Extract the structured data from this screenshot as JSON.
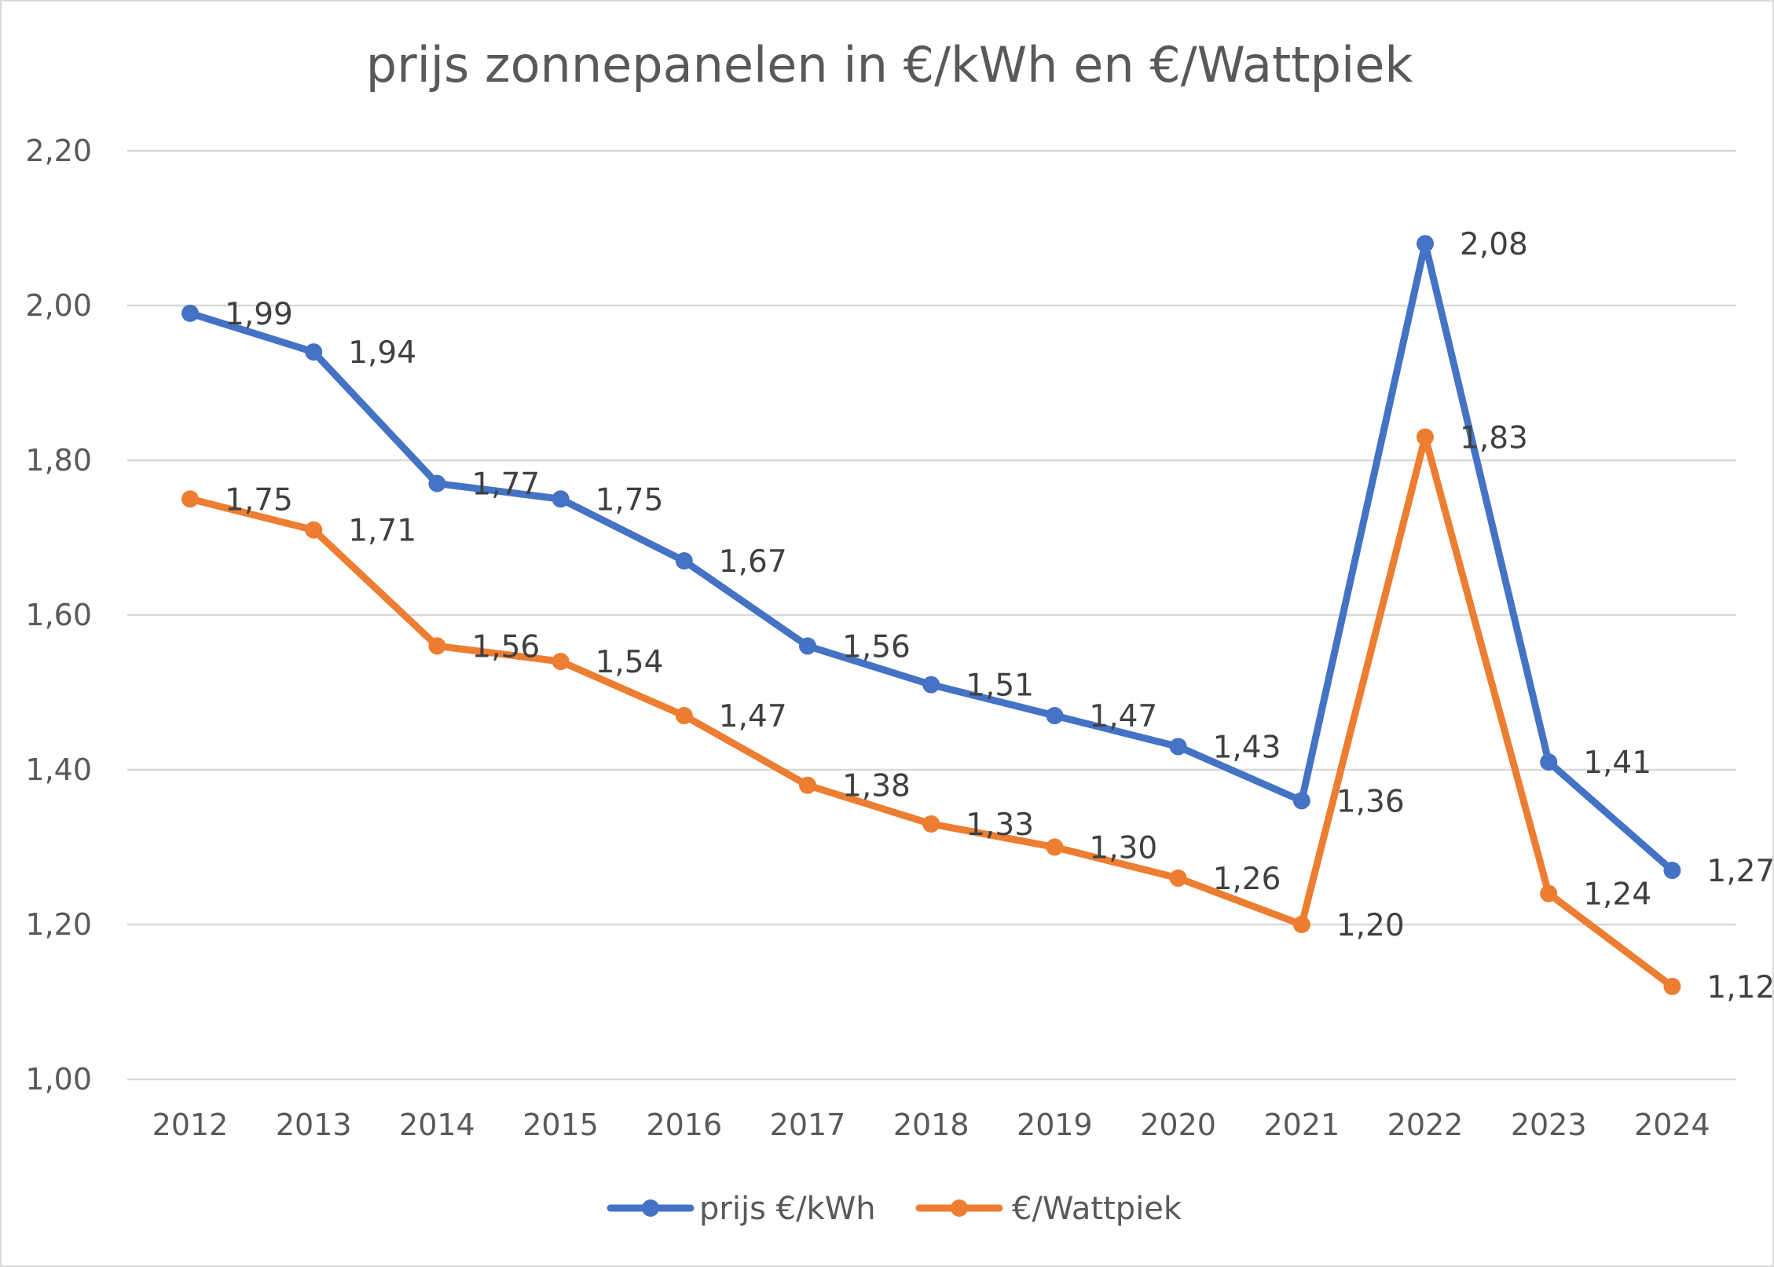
{
  "chart_data": {
    "type": "line",
    "title": "prijs zonnepanelen in €/kWh en €/Wattpiek",
    "xlabel": "",
    "ylabel": "",
    "categories": [
      "2012",
      "2013",
      "2014",
      "2015",
      "2016",
      "2017",
      "2018",
      "2019",
      "2020",
      "2021",
      "2022",
      "2023",
      "2024"
    ],
    "ylim": [
      1.0,
      2.2
    ],
    "yticks": [
      1.0,
      1.2,
      1.4,
      1.6,
      1.8,
      2.0,
      2.2
    ],
    "ytick_labels": [
      "1,00",
      "1,20",
      "1,40",
      "1,60",
      "1,80",
      "2,00",
      "2,20"
    ],
    "grid": true,
    "legend_position": "bottom",
    "series": [
      {
        "name": "prijs €/kWh",
        "color": "#4472C4",
        "values": [
          1.99,
          1.94,
          1.77,
          1.75,
          1.67,
          1.56,
          1.51,
          1.47,
          1.43,
          1.36,
          2.08,
          1.41,
          1.27
        ],
        "labels": [
          "1,99",
          "1,94",
          "1,77",
          "1,75",
          "1,67",
          "1,56",
          "1,51",
          "1,47",
          "1,43",
          "1,36",
          "2,08",
          "1,41",
          "1,27"
        ]
      },
      {
        "name": "€/Wattpiek",
        "color": "#ED7D31",
        "values": [
          1.75,
          1.71,
          1.56,
          1.54,
          1.47,
          1.38,
          1.33,
          1.3,
          1.26,
          1.2,
          1.83,
          1.24,
          1.12
        ],
        "labels": [
          "1,75",
          "1,71",
          "1,56",
          "1,54",
          "1,47",
          "1,38",
          "1,33",
          "1,30",
          "1,26",
          "1,20",
          "1,83",
          "1,24",
          "1,12"
        ]
      }
    ]
  }
}
